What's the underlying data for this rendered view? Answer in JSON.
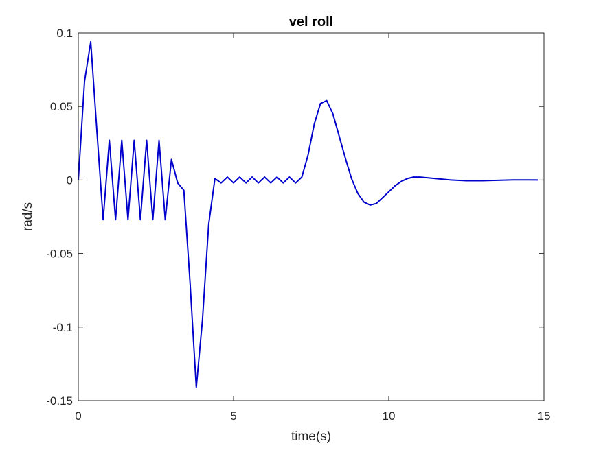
{
  "chart_data": {
    "type": "line",
    "title": "vel roll",
    "xlabel": "time(s)",
    "ylabel": "rad/s",
    "xlim": [
      0,
      15
    ],
    "ylim": [
      -0.15,
      0.1
    ],
    "xticks": [
      0,
      5,
      10,
      15
    ],
    "xtick_labels": [
      "0",
      "5",
      "10",
      "15"
    ],
    "yticks": [
      -0.15,
      -0.1,
      -0.05,
      0,
      0.05,
      0.1
    ],
    "ytick_labels": [
      "-0.15",
      "-0.1",
      "-0.05",
      "0",
      "0.05",
      "0.1"
    ],
    "grid": false,
    "box": true,
    "line_color": "#0000CD",
    "axis_color": "#262626",
    "series": [
      {
        "x": [
          0,
          0.2,
          0.4,
          0.6,
          0.8,
          1.0,
          1.2,
          1.4,
          1.6,
          1.8,
          2.0,
          2.2,
          2.4,
          2.6,
          2.8,
          3.0,
          3.2,
          3.4,
          3.6,
          3.8,
          4.0,
          4.2,
          4.4,
          4.6,
          4.8,
          5.0,
          5.2,
          5.4,
          5.6,
          5.8,
          6.0,
          6.2,
          6.4,
          6.6,
          6.8,
          7.0,
          7.2,
          7.4,
          7.6,
          7.8,
          8.0,
          8.2,
          8.4,
          8.6,
          8.8,
          9.0,
          9.2,
          9.4,
          9.6,
          9.8,
          10.0,
          10.2,
          10.4,
          10.6,
          10.8,
          11.0,
          11.5,
          12.0,
          12.5,
          13.0,
          13.5,
          14.0,
          14.5,
          14.8
        ],
        "y": [
          0,
          0.067,
          0.094,
          0.033,
          -0.027,
          0.027,
          -0.027,
          0.027,
          -0.027,
          0.027,
          -0.027,
          0.027,
          -0.027,
          0.027,
          -0.027,
          0.014,
          -0.002,
          -0.007,
          -0.07,
          -0.141,
          -0.095,
          -0.03,
          0.001,
          -0.002,
          0.002,
          -0.002,
          0.002,
          -0.002,
          0.002,
          -0.002,
          0.002,
          -0.002,
          0.002,
          -0.002,
          0.002,
          -0.002,
          0.002,
          0.017,
          0.038,
          0.052,
          0.054,
          0.045,
          0.03,
          0.015,
          0.001,
          -0.009,
          -0.015,
          -0.017,
          -0.016,
          -0.012,
          -0.008,
          -0.004,
          -0.001,
          0.001,
          0.002,
          0.002,
          0.001,
          0.0,
          -0.0005,
          -0.0005,
          -0.0002,
          0.0001,
          0.0001,
          0.0
        ]
      }
    ]
  }
}
